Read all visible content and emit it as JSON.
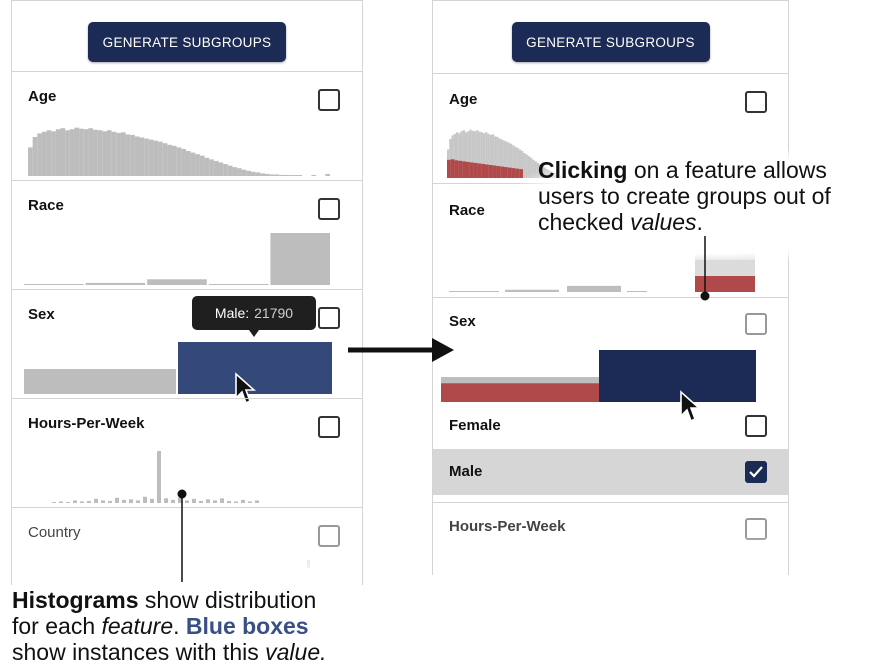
{
  "left_panel": {
    "button_label": "GENERATE SUBGROUPS",
    "features": [
      {
        "label": "Age"
      },
      {
        "label": "Race"
      },
      {
        "label": "Sex"
      },
      {
        "label": "Hours-Per-Week"
      },
      {
        "label": "Country"
      }
    ],
    "tooltip": {
      "label": "Male:",
      "value": "21790"
    }
  },
  "right_panel": {
    "button_label": "GENERATE SUBGROUPS",
    "features": [
      {
        "label": "Age"
      },
      {
        "label": "Race"
      },
      {
        "label": "Sex"
      }
    ],
    "sex_values": [
      {
        "label": "Female",
        "checked": false
      },
      {
        "label": "Male",
        "checked": true
      }
    ],
    "next_feature": {
      "label": "Hours-Per-Week"
    }
  },
  "annotations": {
    "left": {
      "line1_bold": "Histograms",
      "line1_rest": " show distribution",
      "line2_pre": "for each ",
      "line2_italic": "feature",
      "line2_mid": ". ",
      "line2_blue": "Blue boxes",
      "line3_pre": "show instances with this ",
      "line3_italic": "value."
    },
    "right": {
      "line1_bold": "Clicking",
      "line1_rest": " on a feature allows",
      "line2": "users to create groups out of",
      "line3_pre": "checked ",
      "line3_italic": "values",
      "line3_post": "."
    }
  },
  "colors": {
    "button": "#1c2b55",
    "histogram_gray": "#bdbdbd",
    "selected_blue": "#34497a",
    "selected_navy": "#1c2b55",
    "subgroup_red": "#b04a4a"
  },
  "histograms": {
    "age_profile": [
      0.55,
      0.75,
      0.82,
      0.85,
      0.88,
      0.86,
      0.9,
      0.92,
      0.88,
      0.9,
      0.93,
      0.91,
      0.9,
      0.92,
      0.89,
      0.88,
      0.86,
      0.88,
      0.85,
      0.83,
      0.84,
      0.8,
      0.79,
      0.76,
      0.74,
      0.72,
      0.7,
      0.68,
      0.66,
      0.63,
      0.6,
      0.58,
      0.55,
      0.52,
      0.48,
      0.45,
      0.42,
      0.39,
      0.35,
      0.32,
      0.29,
      0.26,
      0.23,
      0.2,
      0.17,
      0.15,
      0.12,
      0.1,
      0.08,
      0.07,
      0.05,
      0.04,
      0.03,
      0.03,
      0.02,
      0.02,
      0.01,
      0.01,
      0.01,
      0.0,
      0.0,
      0.02,
      0.0,
      0.0,
      0.04
    ],
    "race_profile": [
      0.01,
      0.04,
      0.11,
      0.01,
      1.0
    ],
    "sex_profile": [
      0.48,
      1.0
    ],
    "sex_subgroup_profile": [
      0.36,
      0
    ],
    "age_subgroup_profile": [
      0.35,
      0.36,
      0.34,
      0.33,
      0.32,
      0.31,
      0.3,
      0.29,
      0.28,
      0.27,
      0.26,
      0.25,
      0.24,
      0.23,
      0.22,
      0.21,
      0.2,
      0.19,
      0.18,
      0.17
    ],
    "hours_profile": [
      0.02,
      0.03,
      0.02,
      0.05,
      0.03,
      0.04,
      0.08,
      0.05,
      0.04,
      0.1,
      0.06,
      0.07,
      0.05,
      0.12,
      0.08,
      1.0,
      0.09,
      0.06,
      0.1,
      0.05,
      0.08,
      0.04,
      0.07,
      0.05,
      0.09,
      0.04,
      0.03,
      0.06,
      0.03,
      0.05
    ]
  }
}
